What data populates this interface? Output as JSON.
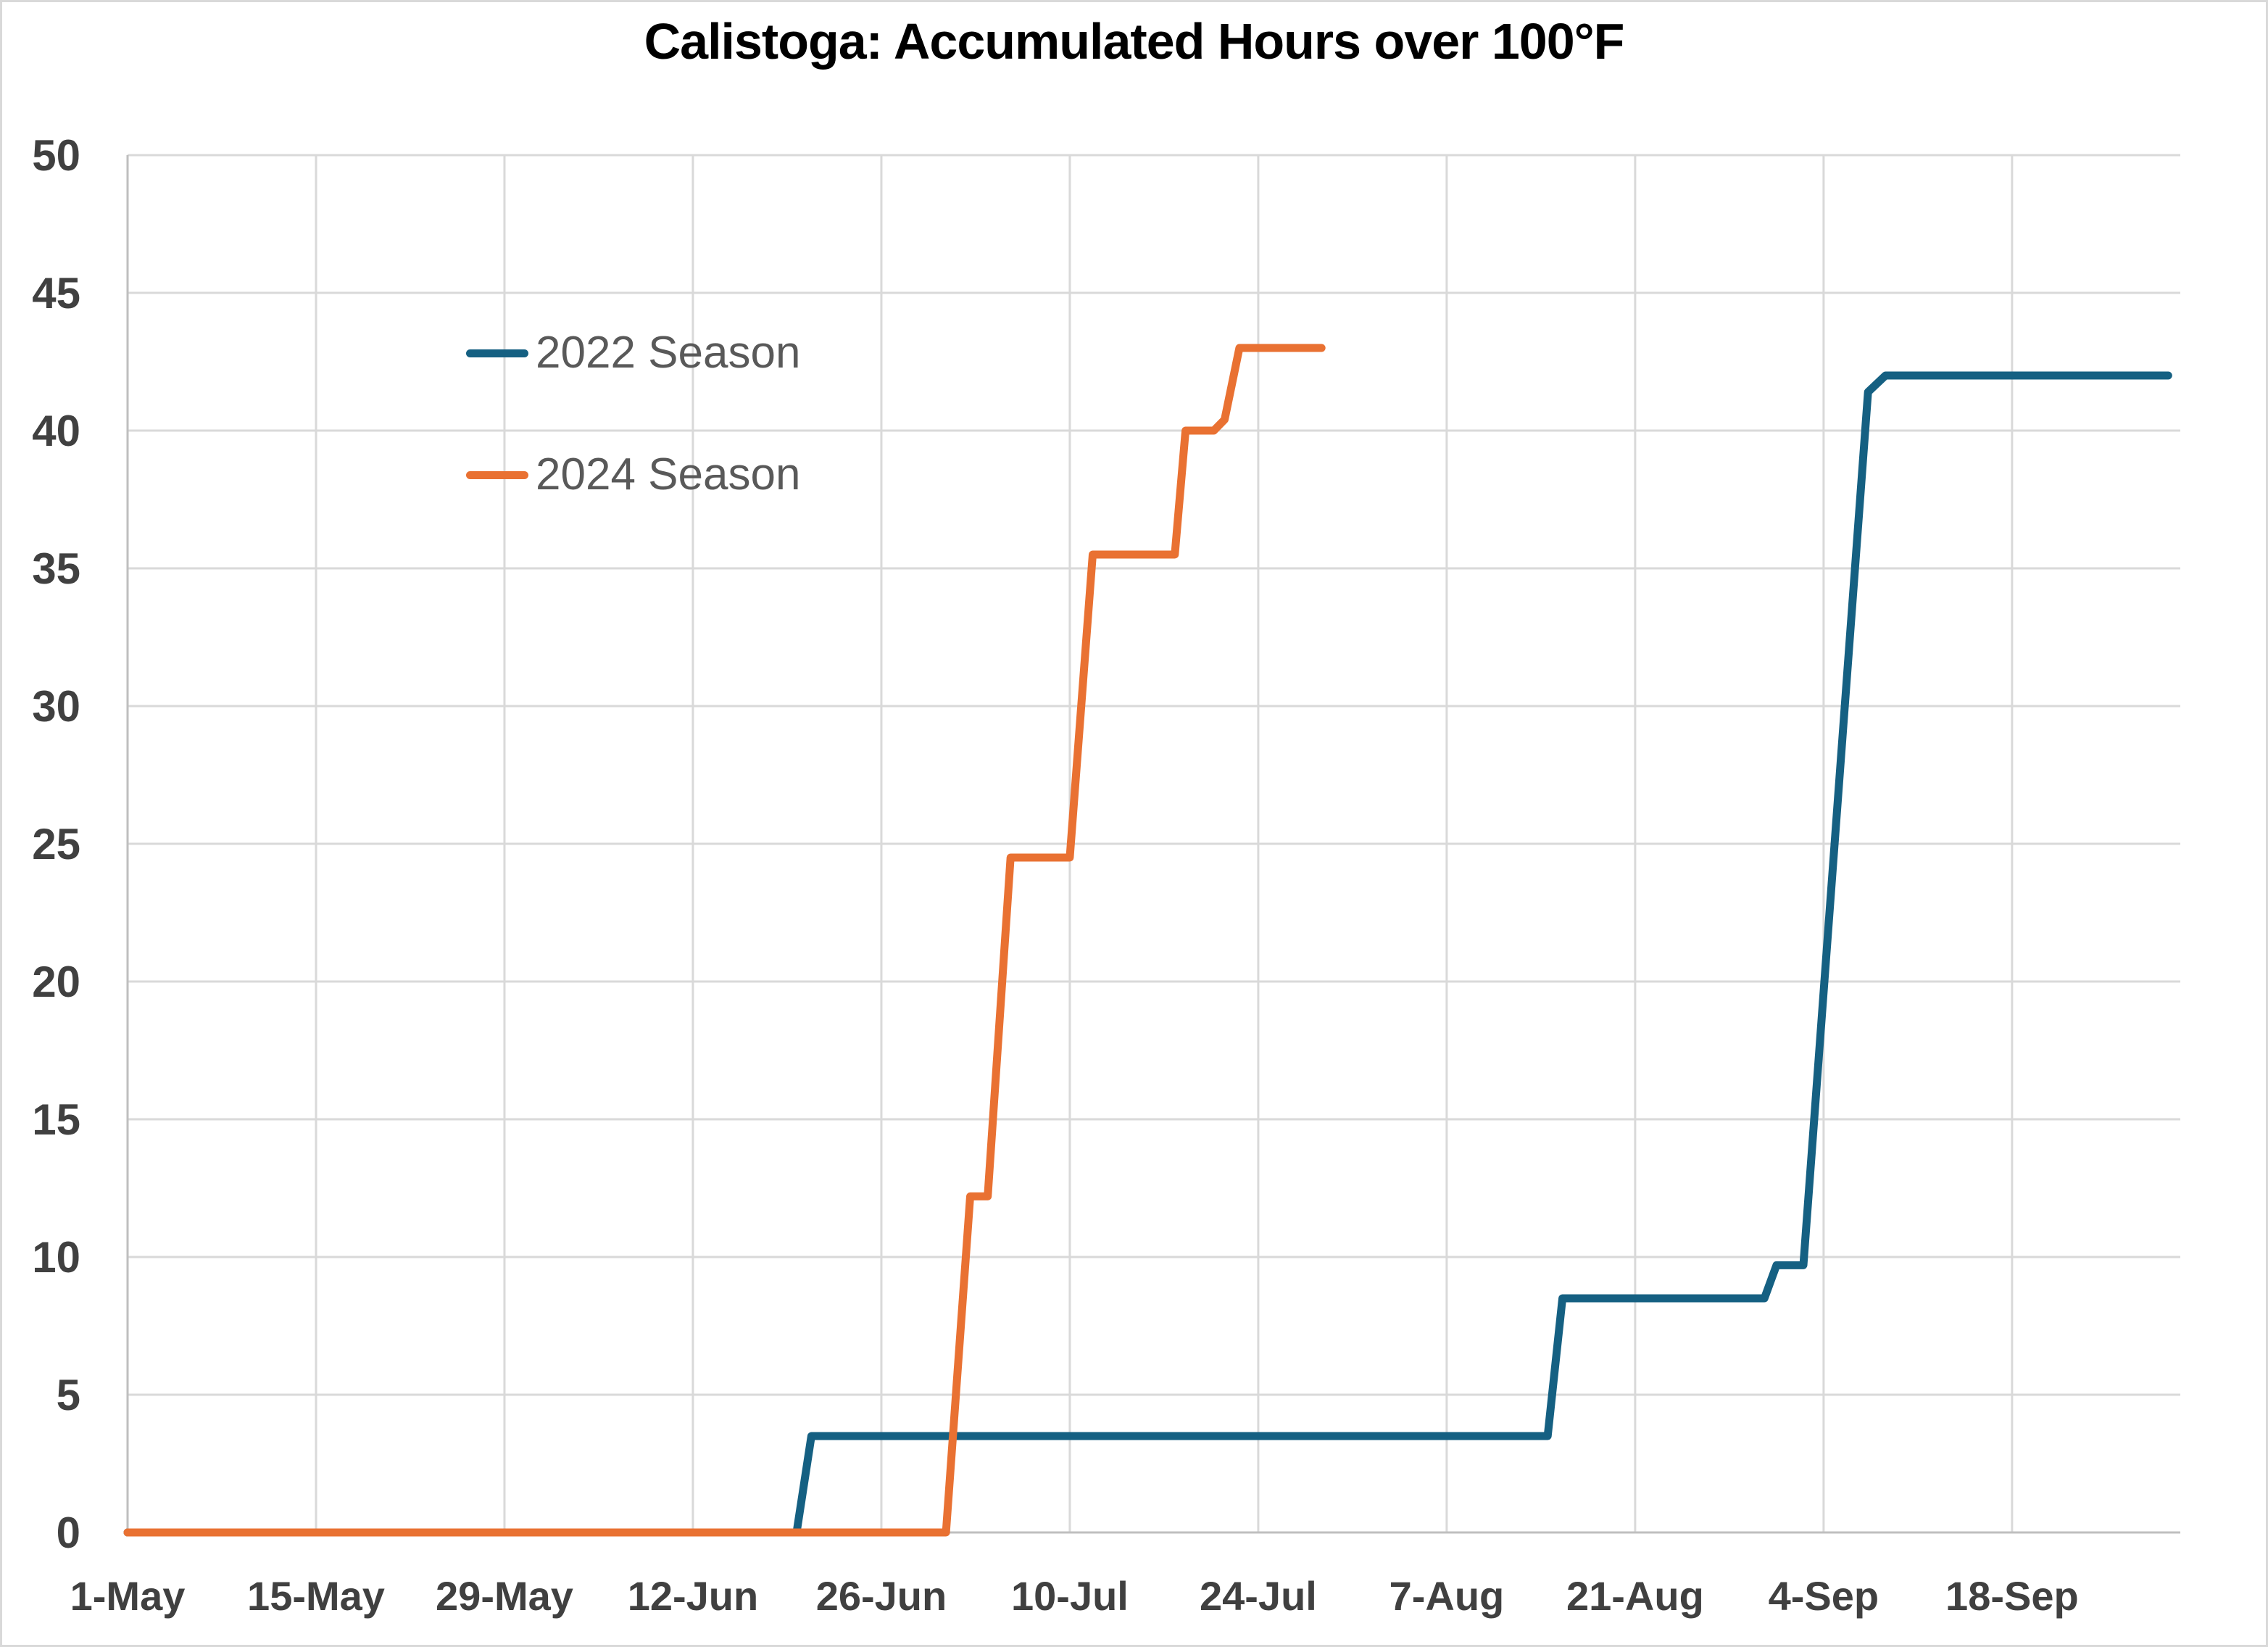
{
  "window": {
    "title": "Calistoga: Accumulated Hours over 100°F"
  },
  "legend": {
    "items": [
      {
        "label": "2022 Season",
        "color": "#156082"
      },
      {
        "label": "2024 Season",
        "color": "#E97132"
      }
    ]
  },
  "chart_data": {
    "type": "line",
    "title": "Calistoga: Accumulated Hours over 100°F",
    "xlabel": "",
    "ylabel": "",
    "ylim": [
      0,
      50
    ],
    "y_ticks": [
      0,
      5,
      10,
      15,
      20,
      25,
      30,
      35,
      40,
      45,
      50
    ],
    "x_axis_note": "day 0 = 1-May, 14-day tick spacing, domain extends to ~30-Sep",
    "x_domain_days": [
      0,
      152.5
    ],
    "x_ticks": [
      {
        "label": "1-May",
        "day": 0
      },
      {
        "label": "15-May",
        "day": 14
      },
      {
        "label": "29-May",
        "day": 28
      },
      {
        "label": "12-Jun",
        "day": 42
      },
      {
        "label": "26-Jun",
        "day": 56
      },
      {
        "label": "10-Jul",
        "day": 70
      },
      {
        "label": "24-Jul",
        "day": 84
      },
      {
        "label": "7-Aug",
        "day": 98
      },
      {
        "label": "21-Aug",
        "day": 112
      },
      {
        "label": "4-Sep",
        "day": 126
      },
      {
        "label": "18-Sep",
        "day": 140
      }
    ],
    "grid": true,
    "gridline_color": "#d9d9d9",
    "axis_line_color": "#bfbfbf",
    "tick_label_color": "#404040",
    "legend_position": "inside upper-left",
    "series": [
      {
        "name": "2022 Season",
        "color": "#156082",
        "points": [
          {
            "date": "1-May",
            "day": 0,
            "hours": 0
          },
          {
            "date": "19-Jun",
            "day": 49.7,
            "hours": 0
          },
          {
            "date": "21-Jun",
            "day": 50.8,
            "hours": 3.5
          },
          {
            "date": "14-Aug",
            "day": 105.5,
            "hours": 3.5
          },
          {
            "date": "15-Aug",
            "day": 106.6,
            "hours": 8.5
          },
          {
            "date": "30-Aug",
            "day": 121.6,
            "hours": 8.5
          },
          {
            "date": "1-Sep",
            "day": 122.5,
            "hours": 9.7
          },
          {
            "date": "2-Sep",
            "day": 124.5,
            "hours": 9.7
          },
          {
            "date": "7-Sep",
            "day": 129.3,
            "hours": 41.4
          },
          {
            "date": "8-Sep",
            "day": 130.6,
            "hours": 42
          },
          {
            "date": "29-Sep",
            "day": 151.6,
            "hours": 42
          }
        ]
      },
      {
        "name": "2024 Season",
        "color": "#E97132",
        "points": [
          {
            "date": "1-May",
            "day": 0,
            "hours": 0
          },
          {
            "date": "1-Jul",
            "day": 60.8,
            "hours": 0
          },
          {
            "date": "3-Jul",
            "day": 62.6,
            "hours": 12.2
          },
          {
            "date": "4-Jul",
            "day": 63.9,
            "hours": 12.2
          },
          {
            "date": "6-Jul",
            "day": 65.6,
            "hours": 24.5
          },
          {
            "date": "10-Jul",
            "day": 70.0,
            "hours": 24.5
          },
          {
            "date": "12-Jul",
            "day": 71.7,
            "hours": 35.5
          },
          {
            "date": "17-Jul",
            "day": 77.8,
            "hours": 35.5
          },
          {
            "date": "19-Jul",
            "day": 78.6,
            "hours": 40
          },
          {
            "date": "21-Jul",
            "day": 80.7,
            "hours": 40
          },
          {
            "date": "22-Jul",
            "day": 81.5,
            "hours": 40.4
          },
          {
            "date": "23-Jul",
            "day": 82.6,
            "hours": 43
          },
          {
            "date": "28-Jul",
            "day": 88.7,
            "hours": 43
          }
        ]
      }
    ]
  }
}
